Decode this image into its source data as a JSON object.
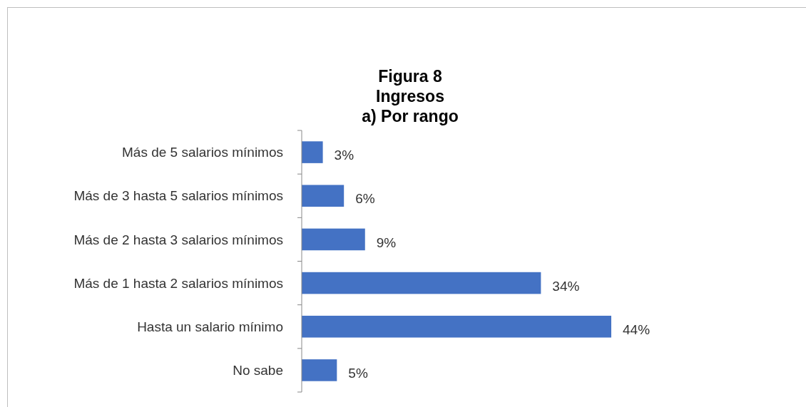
{
  "chart_data": {
    "type": "bar",
    "orientation": "horizontal",
    "title": "Figura 8\nIngresos\na) Por rango",
    "categories": [
      "Más de 5 salarios mínimos",
      "Más de 3 hasta 5 salarios mínimos",
      "Más de 2 hasta 3 salarios mínimos",
      "Más de 1 hasta 2 salarios mínimos",
      "Hasta un salario mínimo",
      "No sabe"
    ],
    "values": [
      3,
      6,
      9,
      34,
      44,
      5
    ],
    "value_labels": [
      "3%",
      "6%",
      "9%",
      "34%",
      "44%",
      "5%"
    ],
    "color": "#4472c4"
  }
}
